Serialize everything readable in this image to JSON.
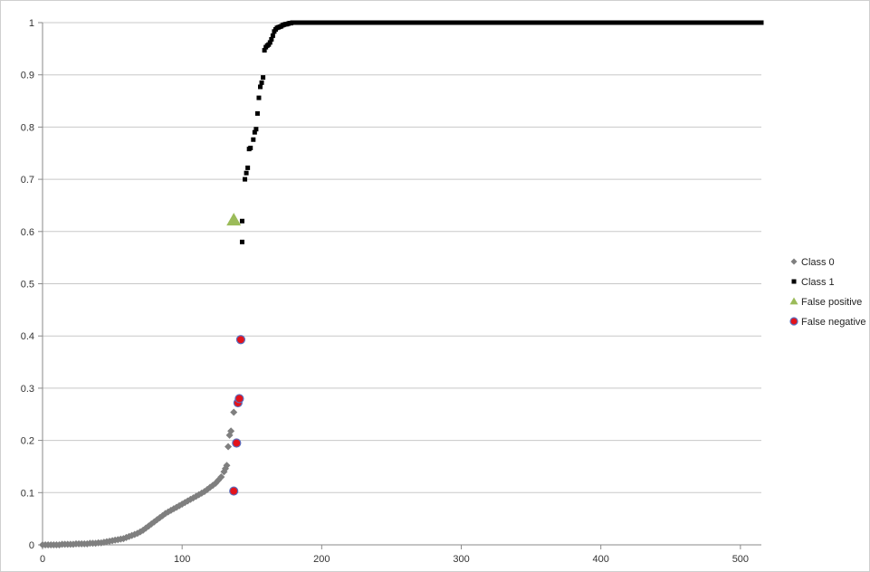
{
  "chart_data": {
    "type": "scatter",
    "xlim": [
      0,
      515
    ],
    "ylim": [
      0,
      1
    ],
    "x_ticks": [
      0,
      100,
      200,
      300,
      400,
      500
    ],
    "y_ticks": [
      0,
      0.1,
      0.2,
      0.3,
      0.4,
      0.5,
      0.6,
      0.7,
      0.8,
      0.9,
      1
    ],
    "y_tick_labels": [
      "0",
      "0.1",
      "0.2",
      "0.3",
      "0.4",
      "0.5",
      "0.6",
      "0.7",
      "0.8",
      "0.9",
      "1"
    ],
    "x_tick_labels": [
      "0",
      "100",
      "200",
      "300",
      "400",
      "500"
    ],
    "grid": "horizontal",
    "legend_position": "right",
    "colors": {
      "class0": "#7f7f7f",
      "class1": "#000000",
      "false_positive": "#9bbb59",
      "false_negative_fill": "#e3131b",
      "false_negative_edge": "#5b6fbf",
      "grid": "#c8c8c8"
    },
    "series": [
      {
        "name": "Class 0",
        "marker": "diamond",
        "x": [
          0,
          2,
          4,
          6,
          8,
          10,
          12,
          14,
          16,
          18,
          20,
          22,
          24,
          26,
          28,
          30,
          32,
          34,
          36,
          38,
          40,
          42,
          44,
          46,
          48,
          50,
          52,
          54,
          56,
          58,
          60,
          62,
          64,
          66,
          68,
          70,
          72,
          74,
          76,
          78,
          80,
          82,
          84,
          86,
          88,
          90,
          92,
          94,
          96,
          98,
          100,
          102,
          104,
          106,
          108,
          110,
          112,
          114,
          116,
          118,
          120,
          122,
          124,
          126,
          128,
          130,
          131,
          132,
          133,
          134,
          135,
          137
        ],
        "y": [
          0,
          0,
          0,
          0,
          0,
          0,
          0,
          0.001,
          0.001,
          0.001,
          0.001,
          0.001,
          0.002,
          0.002,
          0.002,
          0.002,
          0.002,
          0.003,
          0.003,
          0.003,
          0.004,
          0.004,
          0.005,
          0.006,
          0.007,
          0.008,
          0.009,
          0.01,
          0.011,
          0.012,
          0.014,
          0.016,
          0.018,
          0.02,
          0.022,
          0.025,
          0.028,
          0.032,
          0.036,
          0.04,
          0.044,
          0.048,
          0.052,
          0.056,
          0.06,
          0.063,
          0.066,
          0.069,
          0.072,
          0.075,
          0.078,
          0.081,
          0.084,
          0.087,
          0.09,
          0.093,
          0.096,
          0.099,
          0.102,
          0.106,
          0.11,
          0.114,
          0.118,
          0.124,
          0.13,
          0.14,
          0.146,
          0.152,
          0.188,
          0.21,
          0.218,
          0.254
        ]
      },
      {
        "name": "Class 1",
        "marker": "square",
        "x": [
          143,
          143,
          145,
          146,
          147,
          148,
          149,
          151,
          152,
          153,
          154,
          155,
          156,
          157,
          158,
          159,
          160,
          161,
          162,
          163,
          164,
          165,
          166,
          167,
          168,
          169,
          170,
          171,
          172,
          173,
          174,
          175,
          176,
          177,
          178,
          179,
          180,
          181,
          182,
          183,
          184,
          185,
          186,
          187,
          188,
          190,
          200,
          210,
          220,
          230,
          240,
          250,
          260,
          270,
          280,
          290,
          300,
          310,
          320,
          330,
          340,
          350,
          360,
          370,
          380,
          390,
          400,
          410,
          420,
          430,
          440,
          450,
          460,
          470,
          480,
          490,
          500,
          510,
          515
        ],
        "y": [
          0.58,
          0.62,
          0.7,
          0.712,
          0.722,
          0.758,
          0.76,
          0.776,
          0.79,
          0.796,
          0.826,
          0.856,
          0.877,
          0.885,
          0.895,
          0.947,
          0.953,
          0.956,
          0.958,
          0.962,
          0.968,
          0.975,
          0.983,
          0.987,
          0.99,
          0.991,
          0.992,
          0.993,
          0.995,
          0.996,
          0.997,
          0.997,
          0.998,
          0.999,
          0.999,
          1,
          1,
          1,
          1,
          1,
          1,
          1,
          1,
          1,
          1,
          1,
          1,
          1,
          1,
          1,
          1,
          1,
          1,
          1,
          1,
          1,
          1,
          1,
          1,
          1,
          1,
          1,
          1,
          1,
          1,
          1,
          1,
          1,
          1,
          1,
          1,
          1,
          1,
          1,
          1,
          1,
          1,
          1,
          1
        ]
      },
      {
        "name": "False positive",
        "marker": "triangle",
        "x": [
          137
        ],
        "y": [
          0.622
        ]
      },
      {
        "name": "False negative",
        "marker": "circle",
        "x": [
          137,
          139,
          140,
          141,
          142
        ],
        "y": [
          0.103,
          0.195,
          0.272,
          0.28,
          0.393
        ]
      }
    ]
  }
}
